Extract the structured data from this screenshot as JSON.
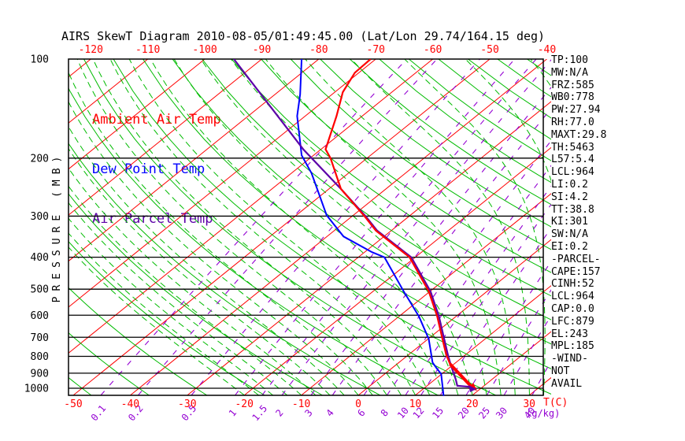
{
  "title": "AIRS SkewT Diagram 2010-08-05/01:49:45.00 (Lat/Lon 29.74/164.15 deg)",
  "colors": {
    "isotherm": "#ff0000",
    "dry_adiabat": "#00bb00",
    "moist_adiabat": "#00bb00",
    "mixing_ratio": "#9400d3",
    "ambient": "#ff0000",
    "dewpoint": "#0000ff",
    "parcel": "#5c00a8",
    "frame": "#000000",
    "text": "#000000"
  },
  "legend": [
    {
      "label": "Ambient Air Temp",
      "color": "#ff0000"
    },
    {
      "label": "Dew Point Temp",
      "color": "#0000ff"
    },
    {
      "label": "Air Parcel Temp",
      "color": "#5c00a8"
    }
  ],
  "stats": [
    "TP:100",
    "MW:N/A",
    "FRZ:585",
    "WB0:778",
    "PW:27.94",
    "RH:77.0",
    "MAXT:29.8",
    "TH:5463",
    "L57:5.4",
    "LCL:964",
    "LI:0.2",
    "SI:4.2",
    "TT:38.8",
    "KI:301",
    "SW:N/A",
    "EI:0.2",
    "-PARCEL-",
    "CAPE:157",
    "CINH:52",
    "LCL:964",
    "CAP:0.0",
    "LFC:879",
    "EL:243",
    "MPL:185",
    "-WIND-",
    "NOT",
    "AVAIL"
  ],
  "chart_data": {
    "type": "line",
    "subtype": "skewt-log-p",
    "pressure_axis": {
      "label": "PRESSURE (MB)",
      "ticks": [
        100,
        200,
        300,
        400,
        500,
        600,
        700,
        800,
        900,
        1000
      ],
      "range": [
        100,
        1050
      ],
      "scale": "log"
    },
    "temp_axis": {
      "label": "T(C)",
      "top_ticks": [
        -120,
        -110,
        -100,
        -90,
        -80,
        -70,
        -60,
        -50,
        -40
      ],
      "bottom_ticks": [
        -50,
        -40,
        -30,
        -20,
        -10,
        0,
        10,
        20,
        30
      ]
    },
    "mixing_axis": {
      "label": "(g/kg)",
      "values": [
        0.1,
        0.2,
        0.5,
        1,
        1.5,
        2,
        3,
        4,
        6,
        8,
        10,
        12,
        15,
        20,
        25,
        30,
        40
      ]
    },
    "grid": {
      "isotherm_step": 10,
      "isotherm_range": [
        -130,
        40
      ],
      "dry_adiabat_step": 10,
      "dry_adiabat_range": [
        -60,
        190
      ],
      "moist_adiabat_step": 2.5,
      "moist_adiabat_range": [
        -20,
        42.5
      ]
    },
    "series": [
      {
        "name": "Ambient Air Temp",
        "key": "ambient",
        "points": [
          [
            -70.9,
            100
          ],
          [
            -70.7,
            110
          ],
          [
            -68.6,
            126
          ],
          [
            -64.5,
            149
          ],
          [
            -59.2,
            188
          ],
          [
            -56.4,
            200
          ],
          [
            -47.9,
            248
          ],
          [
            -37.7,
            301
          ],
          [
            -32.7,
            332
          ],
          [
            -21.0,
            400
          ],
          [
            -10.2,
            508
          ],
          [
            -3.3,
            605
          ],
          [
            2.5,
            708
          ],
          [
            6.6,
            791
          ],
          [
            9.3,
            844
          ],
          [
            18.3,
            995
          ]
        ]
      },
      {
        "name": "Dew Point Temp",
        "key": "dewpoint",
        "points": [
          [
            -83.0,
            100
          ],
          [
            -75.6,
            128
          ],
          [
            -71.4,
            149
          ],
          [
            -62.1,
            196
          ],
          [
            -56.5,
            222
          ],
          [
            -44.7,
            298
          ],
          [
            -37.1,
            346
          ],
          [
            -28.7,
            386
          ],
          [
            -25.4,
            400
          ],
          [
            -14.6,
            508
          ],
          [
            -6.5,
            605
          ],
          [
            0.1,
            708
          ],
          [
            5.9,
            835
          ],
          [
            8.0,
            872
          ],
          [
            9.9,
            905
          ],
          [
            12.7,
            983
          ],
          [
            15.1,
            1055
          ]
        ]
      },
      {
        "name": "Air Parcel Temp",
        "key": "parcel",
        "points": [
          [
            -94.9,
            100
          ],
          [
            -63.1,
            188
          ],
          [
            -47.9,
            248
          ],
          [
            -37.5,
            301
          ],
          [
            -32.5,
            332
          ],
          [
            -20.7,
            400
          ],
          [
            -9.9,
            508
          ],
          [
            -3.0,
            605
          ],
          [
            2.8,
            708
          ],
          [
            6.9,
            791
          ],
          [
            9.6,
            849
          ],
          [
            13.6,
            939
          ],
          [
            15.3,
            983
          ],
          [
            18.6,
            993
          ]
        ]
      }
    ],
    "hatch_between": [
      "Ambient Air Temp",
      "Air Parcel Temp"
    ],
    "hatch_pressure_range": [
      290,
      860
    ]
  }
}
